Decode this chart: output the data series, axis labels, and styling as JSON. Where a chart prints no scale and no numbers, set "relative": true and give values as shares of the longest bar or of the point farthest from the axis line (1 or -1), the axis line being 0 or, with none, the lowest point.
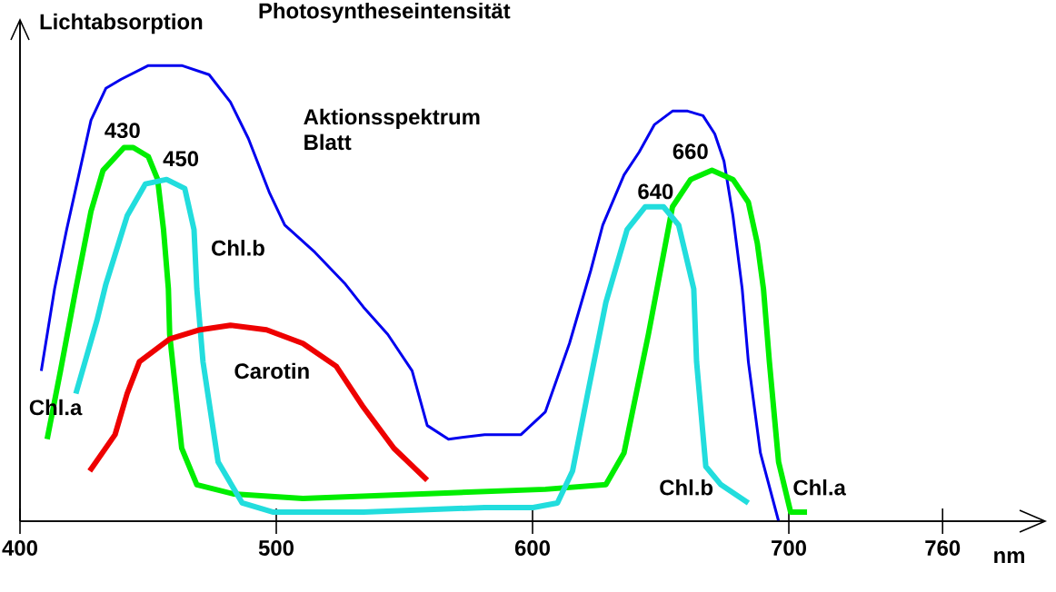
{
  "chart_data": {
    "type": "line",
    "relative": true,
    "title": "Photosyntheseintensität",
    "ylabel": "Lichtabsorption",
    "xlabel": "nm",
    "xlim": [
      400,
      800
    ],
    "xticks": [
      400,
      500,
      600,
      700,
      760
    ],
    "series": [
      {
        "name": "Aktionsspektrum Blatt",
        "color": "#0000ee",
        "x": [
          408.3,
          413.5,
          418.2,
          427.7,
          433.5,
          439.5,
          450.1,
          463.1,
          473.8,
          482.1,
          489.1,
          497.4,
          503.3,
          515.1,
          527.0,
          534.0,
          543.5,
          553.0,
          558.9,
          567.2,
          581.3,
          595.5,
          605.0,
          614.4,
          622.7,
          627.4,
          635.7,
          641.6,
          647.5,
          654.6,
          660.5,
          666.5,
          671.1,
          674.7,
          678.2,
          681.8,
          684.2,
          688.9,
          696.0
        ],
        "values": [
          0.33,
          0.51,
          0.64,
          0.88,
          0.95,
          0.97,
          1.0,
          1.0,
          0.98,
          0.92,
          0.84,
          0.72,
          0.65,
          0.59,
          0.52,
          0.47,
          0.41,
          0.33,
          0.21,
          0.18,
          0.19,
          0.19,
          0.24,
          0.39,
          0.55,
          0.65,
          0.76,
          0.81,
          0.87,
          0.9,
          0.9,
          0.89,
          0.85,
          0.79,
          0.67,
          0.51,
          0.35,
          0.15,
          0.0
        ]
      },
      {
        "name": "Chl.a",
        "color": "#00ee00",
        "x": [
          410.6,
          415.8,
          421.8,
          427.7,
          432.4,
          440.6,
          444.2,
          450.1,
          453.7,
          456.0,
          457.9,
          458.4,
          463.1,
          469.0,
          483.2,
          510.4,
          557.7,
          605.0,
          628.6,
          635.7,
          645.2,
          654.6,
          661.7,
          670.0,
          678.2,
          684.2,
          687.7,
          690.1,
          692.4,
          696.0,
          700.7,
          707.1
        ],
        "values": [
          0.18,
          0.33,
          0.51,
          0.68,
          0.77,
          0.82,
          0.82,
          0.8,
          0.75,
          0.64,
          0.51,
          0.41,
          0.16,
          0.08,
          0.06,
          0.05,
          0.06,
          0.07,
          0.08,
          0.15,
          0.41,
          0.69,
          0.75,
          0.77,
          0.75,
          0.7,
          0.61,
          0.51,
          0.35,
          0.13,
          0.02,
          0.02
        ]
      },
      {
        "name": "Chl.b",
        "color": "#22dddd",
        "x": [
          421.8,
          430.0,
          433.5,
          441.8,
          448.9,
          457.2,
          464.3,
          467.9,
          469.0,
          471.4,
          477.3,
          486.7,
          498.6,
          534.0,
          581.3,
          600.2,
          609.7,
          615.6,
          621.5,
          628.6,
          636.9,
          644.0,
          651.1,
          657.0,
          662.9,
          664.0,
          667.6,
          673.5,
          684.2
        ],
        "values": [
          0.28,
          0.44,
          0.52,
          0.67,
          0.74,
          0.75,
          0.73,
          0.64,
          0.51,
          0.35,
          0.13,
          0.04,
          0.02,
          0.02,
          0.03,
          0.03,
          0.04,
          0.11,
          0.28,
          0.48,
          0.64,
          0.69,
          0.69,
          0.65,
          0.51,
          0.35,
          0.12,
          0.08,
          0.04
        ]
      },
      {
        "name": "Carotin",
        "color": "#ee0000",
        "x": [
          427.2,
          437.1,
          441.8,
          446.6,
          458.4,
          470.2,
          482.1,
          496.2,
          510.4,
          523.4,
          534.0,
          545.9,
          558.9
        ],
        "values": [
          0.11,
          0.19,
          0.28,
          0.35,
          0.4,
          0.42,
          0.43,
          0.42,
          0.39,
          0.34,
          0.25,
          0.16,
          0.09
        ]
      }
    ],
    "annotations": [
      {
        "text": "430",
        "x": 440,
        "y": 0.82
      },
      {
        "text": "450",
        "x": 457,
        "y": 0.75
      },
      {
        "text": "640",
        "x": 648,
        "y": 0.69
      },
      {
        "text": "660",
        "x": 668,
        "y": 0.77
      },
      {
        "text": "Chl.a",
        "x": 700.7,
        "y": 0.02
      },
      {
        "text": "Chl.b",
        "x": 684.2,
        "y": 0.04
      }
    ]
  }
}
